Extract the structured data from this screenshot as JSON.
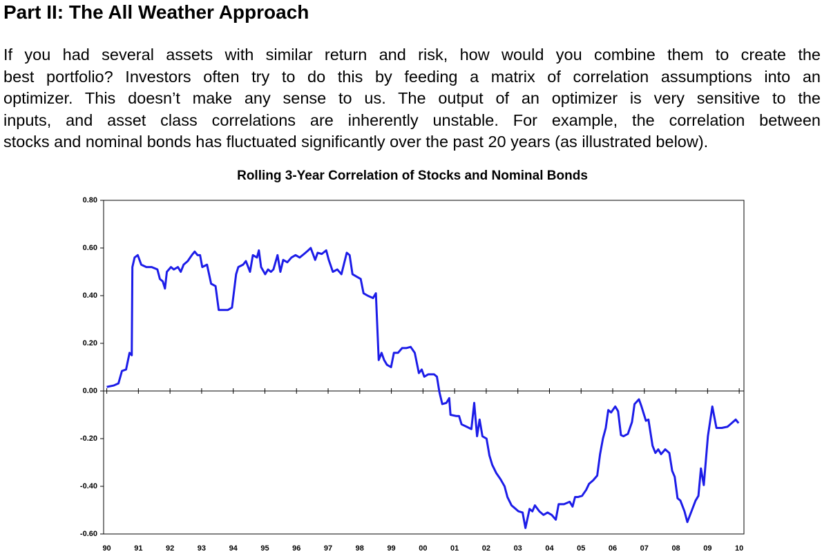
{
  "header": {
    "title": "Part II: The All Weather Approach"
  },
  "paragraph_lines": [
    "If you had several assets with similar return and risk, how would you combine them to create the",
    "best portfolio?  Investors often try to do this by feeding a matrix of correlation assumptions into an",
    "optimizer.  This doesn’t make any sense to us.  The output of an optimizer is very sensitive to the",
    "inputs, and asset class correlations are inherently unstable.  For example, the correlation between",
    "stocks and nominal bonds has fluctuated significantly over the past 20 years (as illustrated below)."
  ],
  "chart_data": {
    "type": "line",
    "title": "Rolling 3-Year Correlation of Stocks and Nominal Bonds",
    "color": "#1c1ce8",
    "xlim": [
      1989.9,
      2010.15
    ],
    "xticks": [
      {
        "value": 1990,
        "label": "90"
      },
      {
        "value": 1991,
        "label": "91"
      },
      {
        "value": 1992,
        "label": "92"
      },
      {
        "value": 1993,
        "label": "93"
      },
      {
        "value": 1994,
        "label": "94"
      },
      {
        "value": 1995,
        "label": "95"
      },
      {
        "value": 1996,
        "label": "96"
      },
      {
        "value": 1997,
        "label": "97"
      },
      {
        "value": 1998,
        "label": "98"
      },
      {
        "value": 1999,
        "label": "99"
      },
      {
        "value": 2000,
        "label": "00"
      },
      {
        "value": 2001,
        "label": "01"
      },
      {
        "value": 2002,
        "label": "02"
      },
      {
        "value": 2003,
        "label": "03"
      },
      {
        "value": 2004,
        "label": "04"
      },
      {
        "value": 2005,
        "label": "05"
      },
      {
        "value": 2006,
        "label": "06"
      },
      {
        "value": 2007,
        "label": "07"
      },
      {
        "value": 2008,
        "label": "08"
      },
      {
        "value": 2009,
        "label": "09"
      },
      {
        "value": 2010,
        "label": "10"
      }
    ],
    "ylim": [
      -0.6,
      0.8
    ],
    "yticks": [
      {
        "value": 0.8,
        "label": "0.80"
      },
      {
        "value": 0.6,
        "label": "0.60"
      },
      {
        "value": 0.4,
        "label": "0.40"
      },
      {
        "value": 0.2,
        "label": "0.20"
      },
      {
        "value": 0,
        "label": "0.00"
      },
      {
        "value": -0.2,
        "label": "-0.20"
      },
      {
        "value": -0.4,
        "label": "-0.40"
      },
      {
        "value": -0.6,
        "label": "-0.60"
      }
    ],
    "x": [
      1990.0,
      1990.22,
      1990.37,
      1990.48,
      1990.61,
      1990.72,
      1990.79,
      1990.81,
      1990.88,
      1990.98,
      1991.09,
      1991.25,
      1991.42,
      1991.6,
      1991.68,
      1991.77,
      1991.84,
      1991.9,
      1992.03,
      1992.12,
      1992.25,
      1992.34,
      1992.43,
      1992.56,
      1992.69,
      1992.78,
      1992.87,
      1992.95,
      1993.02,
      1993.17,
      1993.3,
      1993.44,
      1993.54,
      1993.65,
      1993.83,
      1993.96,
      1994.09,
      1994.16,
      1994.31,
      1994.4,
      1994.53,
      1994.62,
      1994.75,
      1994.81,
      1994.88,
      1995.01,
      1995.1,
      1995.19,
      1995.27,
      1995.4,
      1995.49,
      1995.58,
      1995.71,
      1995.84,
      1995.97,
      1996.1,
      1996.24,
      1996.37,
      1996.45,
      1996.59,
      1996.67,
      1996.8,
      1996.94,
      1997.02,
      1997.15,
      1997.29,
      1997.42,
      1997.59,
      1997.68,
      1997.77,
      1997.9,
      1998.03,
      1998.12,
      1998.25,
      1998.42,
      1998.51,
      1998.6,
      1998.69,
      1998.77,
      1998.86,
      1998.99,
      1999.08,
      1999.21,
      1999.34,
      1999.47,
      1999.61,
      1999.74,
      1999.87,
      1999.96,
      2000.04,
      2000.17,
      2000.35,
      2000.44,
      2000.52,
      2000.61,
      2000.74,
      2000.83,
      2000.87,
      2001.05,
      2001.14,
      2001.22,
      2001.38,
      2001.53,
      2001.62,
      2001.71,
      2001.79,
      2001.88,
      2002.01,
      2002.1,
      2002.19,
      2002.32,
      2002.45,
      2002.58,
      2002.67,
      2002.8,
      2002.89,
      2003.02,
      2003.15,
      2003.24,
      2003.37,
      2003.46,
      2003.54,
      2003.68,
      2003.81,
      2003.94,
      2004.07,
      2004.2,
      2004.29,
      2004.46,
      2004.64,
      2004.73,
      2004.81,
      2004.9,
      2005.03,
      2005.16,
      2005.25,
      2005.38,
      2005.51,
      2005.6,
      2005.69,
      2005.78,
      2005.86,
      2005.95,
      2006.08,
      2006.17,
      2006.26,
      2006.34,
      2006.48,
      2006.61,
      2006.69,
      2006.83,
      2006.91,
      2007.05,
      2007.13,
      2007.26,
      2007.35,
      2007.44,
      2007.53,
      2007.66,
      2007.79,
      2007.88,
      2007.96,
      2008.05,
      2008.14,
      2008.27,
      2008.36,
      2008.49,
      2008.62,
      2008.71,
      2008.79,
      2008.88,
      2009.01,
      2009.15,
      2009.28,
      2009.45,
      2009.63,
      2009.76,
      2009.89,
      2009.98
    ],
    "values": [
      0.017,
      0.023,
      0.032,
      0.084,
      0.09,
      0.16,
      0.15,
      0.52,
      0.56,
      0.57,
      0.53,
      0.52,
      0.52,
      0.51,
      0.47,
      0.46,
      0.43,
      0.5,
      0.52,
      0.51,
      0.52,
      0.5,
      0.53,
      0.545,
      0.57,
      0.585,
      0.57,
      0.57,
      0.52,
      0.53,
      0.45,
      0.44,
      0.34,
      0.34,
      0.34,
      0.35,
      0.49,
      0.52,
      0.53,
      0.545,
      0.5,
      0.57,
      0.56,
      0.59,
      0.52,
      0.49,
      0.51,
      0.5,
      0.51,
      0.57,
      0.5,
      0.55,
      0.54,
      0.56,
      0.57,
      0.56,
      0.575,
      0.59,
      0.6,
      0.55,
      0.58,
      0.575,
      0.59,
      0.55,
      0.5,
      0.51,
      0.49,
      0.58,
      0.57,
      0.49,
      0.48,
      0.47,
      0.41,
      0.4,
      0.39,
      0.41,
      0.13,
      0.16,
      0.13,
      0.11,
      0.1,
      0.16,
      0.16,
      0.18,
      0.18,
      0.185,
      0.16,
      0.075,
      0.09,
      0.06,
      0.07,
      0.07,
      0.06,
      -0.005,
      -0.055,
      -0.05,
      -0.03,
      -0.1,
      -0.105,
      -0.105,
      -0.14,
      -0.15,
      -0.16,
      -0.05,
      -0.19,
      -0.12,
      -0.19,
      -0.2,
      -0.27,
      -0.31,
      -0.345,
      -0.37,
      -0.4,
      -0.445,
      -0.48,
      -0.49,
      -0.505,
      -0.51,
      -0.575,
      -0.495,
      -0.505,
      -0.48,
      -0.505,
      -0.52,
      -0.51,
      -0.52,
      -0.54,
      -0.475,
      -0.475,
      -0.465,
      -0.485,
      -0.445,
      -0.445,
      -0.44,
      -0.415,
      -0.39,
      -0.375,
      -0.355,
      -0.265,
      -0.2,
      -0.155,
      -0.08,
      -0.09,
      -0.065,
      -0.085,
      -0.185,
      -0.19,
      -0.18,
      -0.13,
      -0.055,
      -0.035,
      -0.065,
      -0.125,
      -0.12,
      -0.23,
      -0.26,
      -0.245,
      -0.265,
      -0.245,
      -0.26,
      -0.335,
      -0.36,
      -0.45,
      -0.46,
      -0.505,
      -0.55,
      -0.505,
      -0.46,
      -0.44,
      -0.325,
      -0.395,
      -0.19,
      -0.065,
      -0.155,
      -0.155,
      -0.15,
      -0.135,
      -0.12,
      -0.135
    ]
  }
}
